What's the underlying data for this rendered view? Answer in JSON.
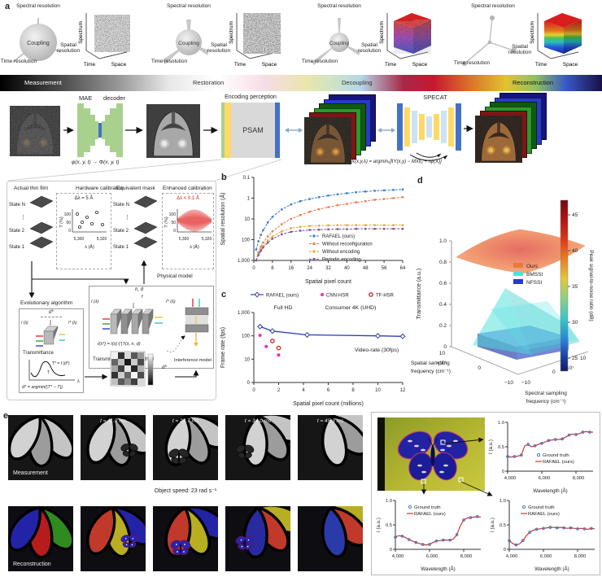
{
  "panel_labels": {
    "a": "a",
    "b": "b",
    "c": "c",
    "d": "d",
    "e": "e"
  },
  "panel_a": {
    "stages": [
      {
        "spectral": "Spectral resolution",
        "coupling": "Coupling",
        "spatial": "Spatial resolution",
        "time": "Time resolution",
        "cube": {
          "y": "Spectrum",
          "xl": "Time",
          "xr": "Space"
        }
      },
      {
        "spectral": "Spectral resolution",
        "coupling": "Coupling",
        "spatial": "Spatial resolution",
        "time": "Time resolution",
        "cube": {
          "y": "Spectrum",
          "xl": "Time",
          "xr": "Space"
        }
      },
      {
        "spectral": "Spectral resolution",
        "coupling": "Coupling",
        "spatial": "Spatial resolution",
        "time": "Time resolution",
        "cube": {
          "y": "Spectrum",
          "xl": "Time",
          "xr": "Space"
        }
      },
      {
        "spectral": "Spectral resolution",
        "spatial": "Spatial resolution",
        "time": "Time resolution",
        "cube": {
          "y": "Spectrum",
          "xl": "Time",
          "xr": "Space"
        }
      }
    ],
    "flow": [
      "Measurement",
      "Restoration",
      "Decoupling",
      "Reconstruction"
    ],
    "pipeline": {
      "mae": "MAE",
      "decoder": "decoder",
      "mae_formula": "φ(x, y, t) → Φ(x, y, t)",
      "encoding": "Encoding perception",
      "psam": "PSAM",
      "specat": "SPECAT",
      "specat_formula": "X(x,y,λ) = argminₓ[‖Y(x,y) − MX‖₂ + τψ(X)]"
    }
  },
  "calibration": {
    "film_title": "Actual thin film",
    "hw_title": "Hardware calibration",
    "mask_title": "Equivalent mask",
    "enh_title": "Enhanced calibration",
    "state_n": "State N",
    "dots": "⋮",
    "state_2": "State 2",
    "state_1": "State 1",
    "hw_delta": "Δλ = 5 Å",
    "enh_delta": "Δλ < 0.1 Å",
    "delta_color": "#d92020",
    "mini": {
      "y": "T (%)",
      "yticks": [
        "100",
        "50",
        "0"
      ],
      "xticks": [
        "5,300",
        "5,320"
      ],
      "x": "λ (Å)"
    },
    "physical_model": "Physical model",
    "nd": "n, d",
    "f": "f",
    "i_in": "I (λ)",
    "i_out": "I* (λ)",
    "tmm_formula": "I(λ*) = I(λ)·∏T(λ, n, d)",
    "tmm_caption": "Transmission matrix method",
    "interference": "Interference model",
    "evo_title": "Evolutionary algorithm",
    "d_star": "d*",
    "transmittance": "Transmittance",
    "t_star": "T* = f (d*)",
    "t": "T",
    "lambda": "λ",
    "evo_formula": "d* = argmin(|T* − T|)"
  },
  "chart_data": [
    {
      "id": "b",
      "type": "line",
      "xlabel": "Spatial pixel count",
      "ylabel": "Spatial resolution (Å)",
      "xlim": [
        0,
        64
      ],
      "xticks": [
        0,
        8,
        16,
        24,
        32,
        40,
        48,
        56,
        64
      ],
      "yscale": "log-inverted",
      "ylim": [
        0.1,
        1000
      ],
      "ytick_labels": [
        "0.1",
        "1",
        "10",
        "100",
        "1,000"
      ],
      "x": [
        1,
        2,
        3,
        4,
        6,
        8,
        12,
        16,
        20,
        24,
        28,
        32,
        36,
        40,
        44,
        48,
        52,
        56,
        60,
        64
      ],
      "series": [
        {
          "name": "RAFAEL (ours)",
          "color": "#3a7cc4",
          "y": [
            300,
            120,
            60,
            35,
            15,
            8,
            3.5,
            2,
            1.4,
            1.1,
            0.9,
            0.75,
            0.65,
            0.58,
            0.52,
            0.48,
            0.44,
            0.42,
            0.4,
            0.38
          ]
        },
        {
          "name": "Without reconfiguration",
          "color": "#e3794f",
          "y": [
            1000,
            400,
            220,
            140,
            70,
            40,
            18,
            10,
            6.5,
            4.5,
            3.4,
            2.7,
            2.2,
            1.9,
            1.6,
            1.4,
            1.2,
            1.1,
            1.0,
            0.9
          ]
        },
        {
          "name": "Without encoding",
          "color": "#dfaa32",
          "y": [
            1000,
            500,
            300,
            200,
            110,
            70,
            40,
            28,
            24,
            22,
            21,
            20.5,
            20,
            20,
            20,
            20,
            20,
            20,
            20,
            20
          ]
        },
        {
          "name": "Periodic encoding",
          "color": "#7b4fa0",
          "y": [
            1000,
            550,
            350,
            240,
            140,
            90,
            55,
            42,
            37,
            34,
            33,
            32,
            31,
            31,
            30,
            30,
            30,
            30,
            30,
            30
          ]
        }
      ]
    },
    {
      "id": "c",
      "type": "scatter",
      "xlabel": "Spatial pixel count (millions)",
      "ylabel": "Frame rate (fps)",
      "xticks": [
        0,
        2,
        4,
        6,
        8,
        10,
        12
      ],
      "ytick_labels": [
        "0",
        "10",
        "100",
        "1,000"
      ],
      "annotations": [
        "Full HD",
        "Consumer 4K (UHD)",
        "Video-rate (30fps)"
      ],
      "series": [
        {
          "name": "RAFAEL (ours)",
          "color": "#2f3db8",
          "marker": "diamond",
          "line": true,
          "x": [
            0.5,
            1.5,
            4.3,
            10,
            12
          ],
          "y": [
            250,
            160,
            110,
            100,
            95
          ]
        },
        {
          "name": "CNN-HSR",
          "color": "#e62ec8",
          "marker": "dot",
          "x": [
            0.5,
            1,
            2
          ],
          "y": [
            105,
            35,
            15
          ]
        },
        {
          "name": "TF-HSR",
          "color": "#d42020",
          "marker": "circle",
          "x": [
            1.5,
            2
          ],
          "y": [
            60,
            30
          ]
        }
      ]
    },
    {
      "id": "d",
      "type": "surface3d",
      "zlabel": "Transmittance (a.u.)",
      "zticks": [
        "0",
        "0.2",
        "0.4",
        "0.6",
        "0.8",
        "1.0"
      ],
      "x_axis_label": "Spectral sampling frequency (cm⁻¹)",
      "y_axis_label": "Spatial sampling frequency (cm⁻¹)",
      "xticks": [
        "−10",
        "0",
        "10"
      ],
      "yticks": [
        "10",
        "0",
        "−10"
      ],
      "multiplier": "×10⁷",
      "legend": [
        {
          "name": "Ours",
          "color": "#f0763e"
        },
        {
          "name": "BMSSI",
          "color": "#42e8e0"
        },
        {
          "name": "NFSSI",
          "color": "#2438d8"
        }
      ],
      "colorbar": {
        "label": "Peak signal-to-noise ratio (dB)",
        "ticks": [
          "45",
          "40",
          "35",
          "30",
          "25"
        ]
      },
      "surfaces": [
        {
          "name": "Ours",
          "approx_level": 0.93
        },
        {
          "name": "BMSSI",
          "peak": 0.52
        },
        {
          "name": "NFSSI",
          "approx_level": 0.12
        }
      ]
    },
    {
      "id": "spec_top",
      "type": "line",
      "xlabel": "Wavelength (Å)",
      "ylabel": "I (a.u.)",
      "xticks": [
        "4,000",
        "6,000",
        "8,000"
      ],
      "yticks": [
        "0",
        "0.5",
        "1.0"
      ],
      "legend": [
        "Ground truth",
        "RAFAEL (ours)"
      ],
      "colors": {
        "gt": "#3a7cc4",
        "line": "#d83030"
      },
      "x": [
        4000,
        4200,
        4400,
        4600,
        4800,
        5000,
        5200,
        5400,
        5600,
        5800,
        6000,
        6200,
        6400,
        6600,
        6800,
        7000,
        7200,
        7400,
        7600,
        7800,
        8000,
        8200,
        8400,
        8600,
        8800,
        9000
      ],
      "y": [
        0.3,
        0.29,
        0.3,
        0.31,
        0.33,
        0.52,
        0.55,
        0.5,
        0.52,
        0.55,
        0.57,
        0.6,
        0.63,
        0.64,
        0.65,
        0.65,
        0.66,
        0.7,
        0.74,
        0.76,
        0.75,
        0.77,
        0.8,
        0.81,
        0.8,
        0.8
      ]
    },
    {
      "id": "spec_left",
      "type": "line",
      "xlabel": "Wavelength (Å)",
      "ylabel": "I (a.u.)",
      "xticks": [
        "4,000",
        "6,000",
        "8,000"
      ],
      "yticks": [
        "0",
        "0.5",
        "1.0"
      ],
      "legend": [
        "Ground truth",
        "RAFAEL (ours)"
      ],
      "colors": {
        "gt": "#3a7cc4",
        "line": "#d83030"
      },
      "x": [
        4000,
        4200,
        4400,
        4600,
        4800,
        5000,
        5200,
        5400,
        5600,
        5800,
        6000,
        6200,
        6400,
        6600,
        6800,
        7000,
        7200,
        7400,
        7600,
        7800,
        8000,
        8200,
        8400,
        8600,
        8800,
        9000
      ],
      "y": [
        0.25,
        0.28,
        0.27,
        0.24,
        0.2,
        0.17,
        0.14,
        0.12,
        0.1,
        0.09,
        0.1,
        0.14,
        0.17,
        0.18,
        0.19,
        0.19,
        0.19,
        0.21,
        0.3,
        0.48,
        0.6,
        0.64,
        0.65,
        0.66,
        0.67,
        0.66
      ]
    },
    {
      "id": "spec_right",
      "type": "line",
      "xlabel": "Wavelength (Å)",
      "ylabel": "I (a.u.)",
      "xticks": [
        "4,000",
        "6,000",
        "8,000"
      ],
      "yticks": [
        "0",
        "0.5",
        "1.0"
      ],
      "legend": [
        "Ground truth",
        "RAFAEL (ours)"
      ],
      "colors": {
        "gt": "#3a7cc4",
        "line": "#d83030"
      },
      "x": [
        4000,
        4200,
        4400,
        4600,
        4800,
        5000,
        5200,
        5400,
        5600,
        5800,
        6000,
        6200,
        6400,
        6600,
        6800,
        7000,
        7200,
        7400,
        7600,
        7800,
        8000,
        8200,
        8400,
        8600,
        8800,
        9000
      ],
      "y": [
        0.18,
        0.12,
        0.09,
        0.11,
        0.18,
        0.28,
        0.35,
        0.39,
        0.41,
        0.42,
        0.43,
        0.44,
        0.45,
        0.45,
        0.44,
        0.45,
        0.44,
        0.43,
        0.44,
        0.43,
        0.42,
        0.43,
        0.42,
        0.41,
        0.43,
        0.42
      ]
    }
  ],
  "panel_e": {
    "measurement": "Measurement",
    "reconstruction": "Reconstruction",
    "timestamps": [
      "t = 11.3 ms",
      "t = 22.7 ms",
      "t = 34.0 ms",
      "t = 45.3 ms"
    ],
    "speed": "Object speed: 23 rad s⁻¹"
  }
}
